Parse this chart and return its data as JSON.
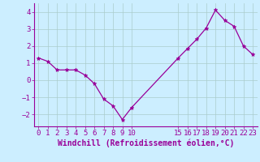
{
  "x": [
    0,
    1,
    2,
    3,
    4,
    5,
    6,
    7,
    8,
    9,
    10,
    15,
    16,
    17,
    18,
    19,
    20,
    21,
    22,
    23
  ],
  "y": [
    1.3,
    1.1,
    0.6,
    0.6,
    0.6,
    0.3,
    -0.2,
    -1.1,
    -1.5,
    -2.3,
    -1.6,
    1.3,
    1.85,
    2.4,
    3.05,
    4.1,
    3.5,
    3.15,
    2.0,
    1.5
  ],
  "line_color": "#990099",
  "marker": "*",
  "bg_color": "#cceeff",
  "grid_color": "#aacccc",
  "xlabel": "Windchill (Refroidissement éolien,°C)",
  "xlabel_color": "#990099",
  "xticks": [
    0,
    1,
    2,
    3,
    4,
    5,
    6,
    7,
    8,
    9,
    10,
    15,
    16,
    17,
    18,
    19,
    20,
    21,
    22,
    23
  ],
  "yticks": [
    -2,
    -1,
    0,
    1,
    2,
    3,
    4
  ],
  "ylim": [
    -2.7,
    4.5
  ],
  "xlim": [
    -0.5,
    23.5
  ],
  "tick_color": "#990099",
  "spine_color": "#990099",
  "font_size_ticks": 6.5,
  "font_size_xlabel": 7.0,
  "marker_size": 3.5,
  "linewidth": 0.9
}
